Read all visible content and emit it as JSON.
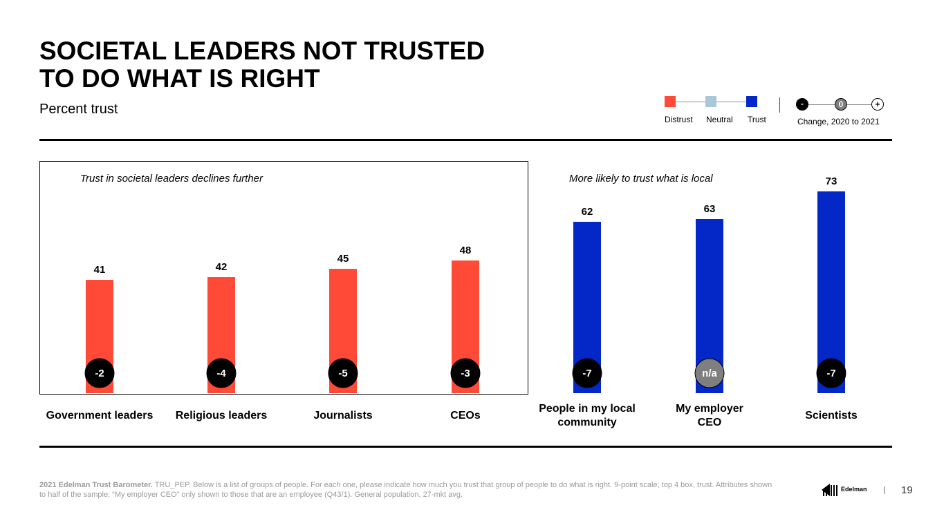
{
  "title": {
    "line1": "SOCIETAL LEADERS NOT TRUSTED",
    "line2": "TO DO WHAT IS RIGHT"
  },
  "subtitle": "Percent trust",
  "legend": {
    "items": [
      {
        "label": "Distrust",
        "color": "#fe4a37"
      },
      {
        "label": "Neutral",
        "color": "#a8c8d8"
      },
      {
        "label": "Trust",
        "color": "#0427c8"
      }
    ],
    "change": {
      "minus": "-",
      "zero": "0",
      "plus": "+",
      "label": "Change, 2020 to 2021"
    }
  },
  "sections": {
    "left_label": "Trust in societal leaders declines further",
    "right_label": "More likely to trust what is local"
  },
  "chart_data": {
    "type": "bar",
    "title": "SOCIETAL LEADERS NOT TRUSTED TO DO WHAT IS RIGHT",
    "subtitle": "Percent trust",
    "categories": [
      "Government leaders",
      "Religious leaders",
      "Journalists",
      "CEOs",
      "People in my local community",
      "My employer CEO",
      "Scientists"
    ],
    "values": [
      41,
      42,
      45,
      48,
      62,
      63,
      73
    ],
    "changes": [
      "-2",
      "-4",
      "-5",
      "-3",
      "-7",
      "n/a",
      "-7"
    ],
    "bar_colors": [
      "#fe4a37",
      "#fe4a37",
      "#fe4a37",
      "#fe4a37",
      "#0427c8",
      "#0427c8",
      "#0427c8"
    ],
    "change_colors": [
      "#000000",
      "#000000",
      "#000000",
      "#000000",
      "#000000",
      "#7f7f7f",
      "#000000"
    ],
    "category_lines": [
      [
        "Government leaders"
      ],
      [
        "Religious leaders"
      ],
      [
        "Journalists"
      ],
      [
        "CEOs"
      ],
      [
        "People in my local",
        "community"
      ],
      [
        "My employer",
        "CEO"
      ],
      [
        "Scientists"
      ]
    ],
    "ylim": [
      0,
      100
    ],
    "grid": false,
    "legend": "top-right"
  },
  "footer": {
    "source_bold": "2021 Edelman Trust Barometer.",
    "source_text": " TRU_PEP. Below is a list of groups of people. For each one, please indicate how much you trust that group of people to do what is right. 9-point scale; top 4 box, trust. Attributes shown to half of the sample; “My employer CEO” only shown to those that are an employee (Q43/1). General population, 27-mkt avg.",
    "brand": "Edelman",
    "page_number": "19"
  }
}
